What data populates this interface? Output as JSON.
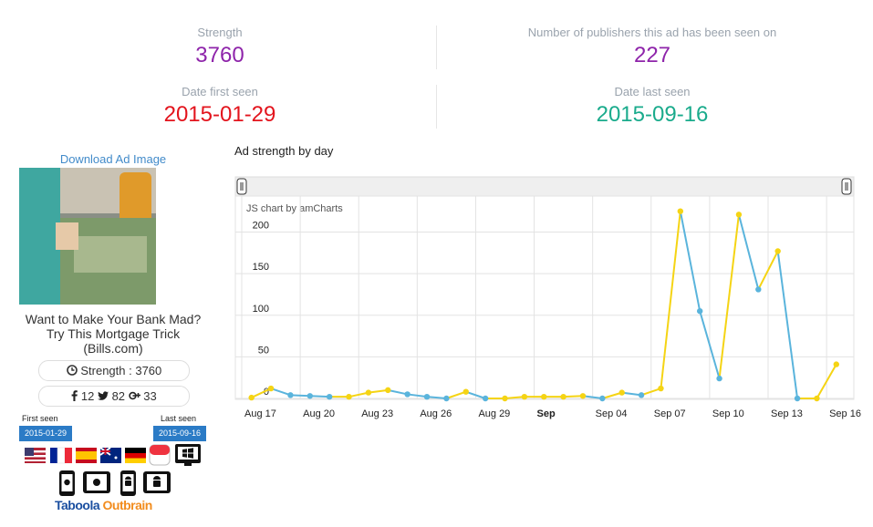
{
  "stats": {
    "strength_label": "Strength",
    "strength": "3760",
    "publishers_label": "Number of publishers this ad has been seen on",
    "publishers": "227",
    "first_seen_label": "Date first seen",
    "first_seen": "2015-01-29",
    "last_seen_label": "Date last seen",
    "last_seen": "2015-09-16"
  },
  "ad": {
    "download": "Download Ad Image",
    "title_line1": "Want to Make Your Bank Mad?",
    "title_line2": "Try This Mortgage Trick",
    "source": "(Bills.com)",
    "strength": "Strength : 3760",
    "facebook": "12",
    "twitter": "82",
    "google_plus": "33",
    "first_seen_label": "First seen",
    "first_seen": "2015-01-29",
    "last_seen_label": "Last seen",
    "last_seen": "2015-09-16",
    "networks": [
      "Taboola",
      "Outbrain"
    ]
  },
  "chart_data": {
    "type": "line",
    "title": "Ad strength by day",
    "credit": "JS chart by amCharts",
    "categories": [
      "Aug 17",
      null,
      null,
      "Aug 20",
      null,
      null,
      "Aug 23",
      null,
      null,
      "Aug 26",
      null,
      null,
      "Aug 29",
      null,
      null,
      "Sep",
      null,
      null,
      "Sep 04",
      null,
      null,
      "Sep 07",
      null,
      null,
      "Sep 10",
      null,
      null,
      "Sep 13",
      null,
      null,
      "Sep 16"
    ],
    "values": [
      1,
      12,
      4,
      3,
      2,
      2,
      7,
      10,
      5,
      2,
      0,
      8,
      0,
      0,
      2,
      2,
      2,
      3,
      0,
      7,
      4,
      12,
      225,
      105,
      24,
      221,
      131,
      177,
      0,
      0,
      41
    ],
    "rise_color": "#f5d414",
    "fall_color": "#5ab4dc",
    "ylim": [
      0,
      240
    ],
    "yticks": [
      0,
      50,
      100,
      150,
      200
    ],
    "grid": true
  }
}
